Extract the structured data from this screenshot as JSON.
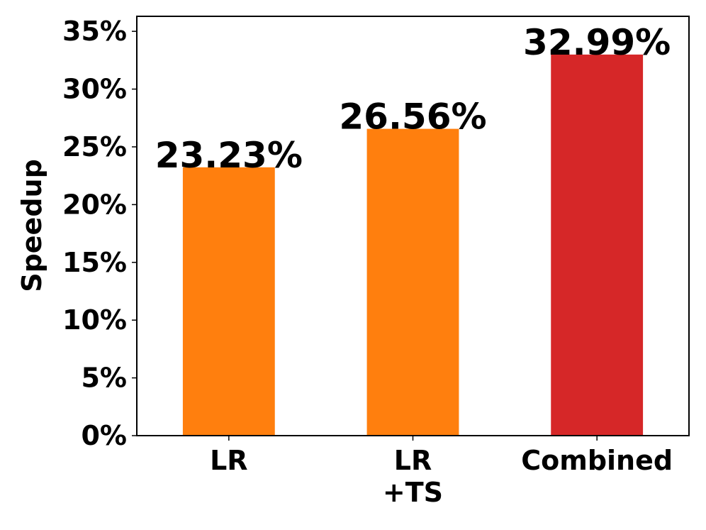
{
  "chart_data": {
    "type": "bar",
    "categories": [
      [
        "LR"
      ],
      [
        "LR",
        "+TS"
      ],
      [
        "Combined"
      ]
    ],
    "values": [
      23.23,
      26.56,
      32.99
    ],
    "value_labels": [
      "23.23%",
      "26.56%",
      "32.99%"
    ],
    "colors": [
      "#ff7f0e",
      "#ff7f0e",
      "#d62728"
    ],
    "title": "",
    "xlabel": "",
    "ylabel": "Speedup",
    "ylim": [
      0,
      36.3
    ],
    "yticks": [
      0,
      5,
      10,
      15,
      20,
      25,
      30,
      35
    ],
    "ytick_labels": [
      "0%",
      "5%",
      "10%",
      "15%",
      "20%",
      "25%",
      "30%",
      "35%"
    ],
    "grid": false,
    "legend": "none"
  }
}
